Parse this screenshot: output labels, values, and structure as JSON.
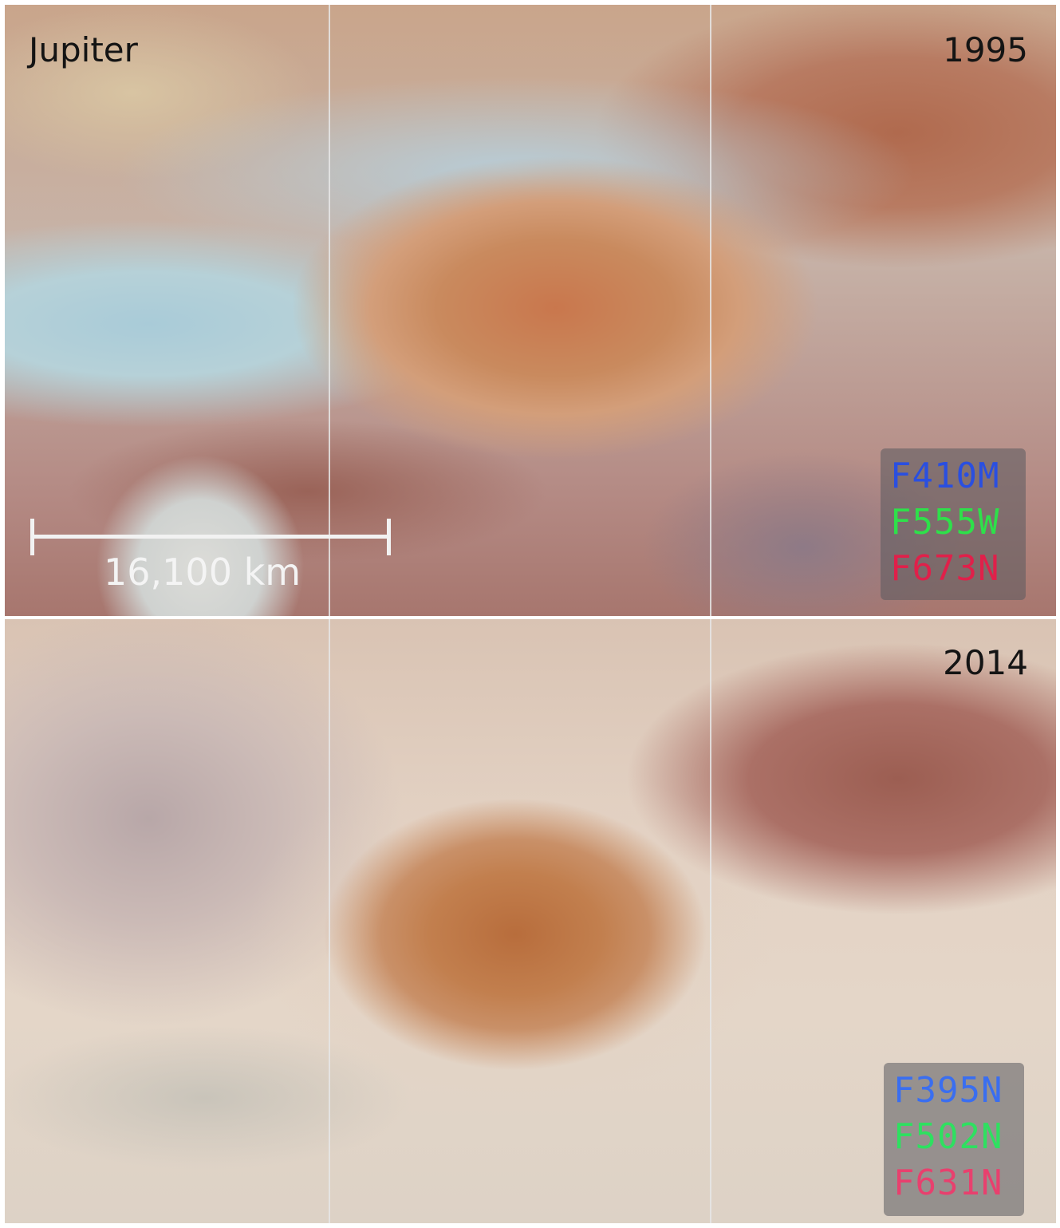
{
  "figure": {
    "planet": "Jupiter",
    "scale_bar": {
      "label": "16,100 km"
    },
    "panels": [
      {
        "year": "1995",
        "filters": [
          {
            "name": "F410M",
            "color": "#2a4fe0"
          },
          {
            "name": "F555W",
            "color": "#2ee04a"
          },
          {
            "name": "F673N",
            "color": "#e0204a"
          }
        ]
      },
      {
        "year": "2014",
        "filters": [
          {
            "name": "F395N",
            "color": "#3a6ef0"
          },
          {
            "name": "F502N",
            "color": "#2ee060"
          },
          {
            "name": "F631N",
            "color": "#e8406e"
          }
        ]
      }
    ]
  }
}
